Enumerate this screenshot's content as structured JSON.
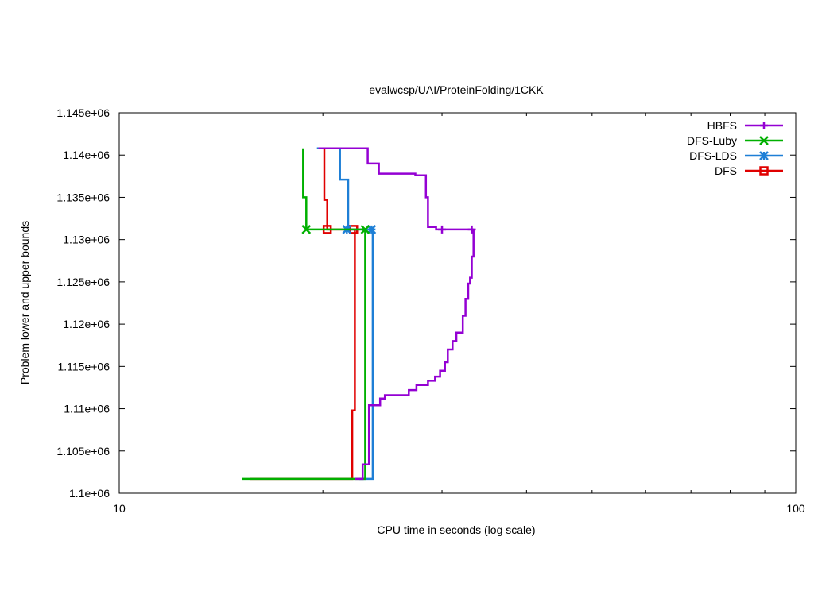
{
  "chart_data": {
    "type": "line",
    "title": "evalwcsp/UAI/ProteinFolding/1CKK",
    "xlabel": "CPU time in seconds (log scale)",
    "ylabel": "Problem lower and upper bounds",
    "xscale": "log",
    "xlim": [
      10,
      100
    ],
    "ylim": [
      1100000,
      1145000
    ],
    "xticks": [
      10,
      100
    ],
    "xtick_labels": [
      "10",
      "100"
    ],
    "yticks": [
      1100000,
      1105000,
      1110000,
      1115000,
      1120000,
      1125000,
      1130000,
      1135000,
      1140000,
      1145000
    ],
    "ytick_labels": [
      "1.1e+06",
      "1.105e+06",
      "1.11e+06",
      "1.115e+06",
      "1.12e+06",
      "1.125e+06",
      "1.13e+06",
      "1.135e+06",
      "1.14e+06",
      "1.145e+06"
    ],
    "grid": false,
    "legend_position": "top-right",
    "series": [
      {
        "name": "HBFS",
        "color": "#9400d3",
        "marker": "plus",
        "upper": [
          [
            19.7,
            1140800
          ],
          [
            23.3,
            1140800
          ],
          [
            23.3,
            1139000
          ],
          [
            24.2,
            1139000
          ],
          [
            24.2,
            1137800
          ],
          [
            27.4,
            1137800
          ],
          [
            27.4,
            1137600
          ],
          [
            28.4,
            1137600
          ],
          [
            28.4,
            1135000
          ],
          [
            28.6,
            1135000
          ],
          [
            28.6,
            1131500
          ],
          [
            29.4,
            1131500
          ],
          [
            29.4,
            1131200
          ],
          [
            33.4,
            1131200
          ]
        ],
        "lower": [
          [
            22.3,
            1101700
          ],
          [
            22.9,
            1101700
          ],
          [
            22.9,
            1103400
          ],
          [
            23.4,
            1103400
          ],
          [
            23.4,
            1110400
          ],
          [
            24.3,
            1110400
          ],
          [
            24.3,
            1111200
          ],
          [
            24.7,
            1111200
          ],
          [
            24.7,
            1111600
          ],
          [
            26.8,
            1111600
          ],
          [
            26.8,
            1112200
          ],
          [
            27.5,
            1112200
          ],
          [
            27.5,
            1112800
          ],
          [
            28.6,
            1112800
          ],
          [
            28.6,
            1113300
          ],
          [
            29.3,
            1113300
          ],
          [
            29.3,
            1113800
          ],
          [
            29.8,
            1113800
          ],
          [
            29.8,
            1114500
          ],
          [
            30.3,
            1114500
          ],
          [
            30.3,
            1115500
          ],
          [
            30.6,
            1115500
          ],
          [
            30.6,
            1117000
          ],
          [
            31.1,
            1117000
          ],
          [
            31.1,
            1118000
          ],
          [
            31.5,
            1118000
          ],
          [
            31.5,
            1119000
          ],
          [
            32.2,
            1119000
          ],
          [
            32.2,
            1121000
          ],
          [
            32.5,
            1121000
          ],
          [
            32.5,
            1123000
          ],
          [
            32.8,
            1123000
          ],
          [
            32.8,
            1124800
          ],
          [
            33.0,
            1124800
          ],
          [
            33.0,
            1125500
          ],
          [
            33.2,
            1125500
          ],
          [
            33.2,
            1128000
          ],
          [
            33.4,
            1128000
          ],
          [
            33.4,
            1131200
          ]
        ],
        "markers": [
          [
            30.0,
            1131200
          ],
          [
            33.2,
            1131200
          ]
        ]
      },
      {
        "name": "DFS-Luby",
        "color": "#00b000",
        "marker": "x",
        "upper": [
          [
            18.7,
            1140800
          ],
          [
            18.7,
            1135000
          ],
          [
            18.9,
            1135000
          ],
          [
            18.9,
            1131200
          ],
          [
            23.1,
            1131200
          ]
        ],
        "lower": [
          [
            15.2,
            1101700
          ],
          [
            23.1,
            1101700
          ],
          [
            23.1,
            1131200
          ]
        ],
        "markers": [
          [
            18.9,
            1131200
          ],
          [
            23.1,
            1131200
          ]
        ]
      },
      {
        "name": "DFS-LDS",
        "color": "#1e7fd6",
        "marker": "star",
        "upper": [
          [
            19.6,
            1140800
          ],
          [
            21.2,
            1140800
          ],
          [
            21.2,
            1137100
          ],
          [
            21.8,
            1137100
          ],
          [
            21.8,
            1131200
          ],
          [
            23.7,
            1131200
          ]
        ],
        "lower": [
          [
            22.6,
            1101700
          ],
          [
            23.7,
            1101700
          ],
          [
            23.7,
            1131200
          ]
        ],
        "markers": [
          [
            21.7,
            1131200
          ],
          [
            23.6,
            1131200
          ]
        ]
      },
      {
        "name": "DFS",
        "color": "#e00000",
        "marker": "square",
        "upper": [
          [
            20.1,
            1140800
          ],
          [
            20.1,
            1134700
          ],
          [
            20.3,
            1134700
          ],
          [
            20.3,
            1131200
          ],
          [
            22.4,
            1131200
          ]
        ],
        "lower": [
          [
            15.6,
            1101700
          ],
          [
            22.1,
            1101700
          ],
          [
            22.1,
            1109800
          ],
          [
            22.3,
            1109800
          ],
          [
            22.3,
            1131200
          ]
        ],
        "markers": [
          [
            20.3,
            1131200
          ],
          [
            22.2,
            1131200
          ]
        ]
      }
    ]
  }
}
